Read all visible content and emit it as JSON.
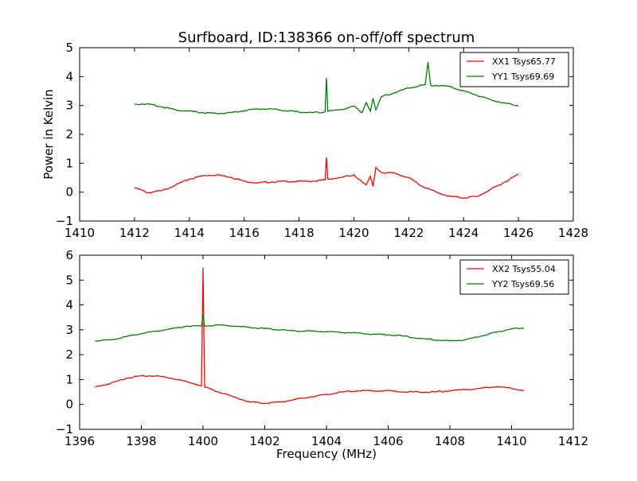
{
  "figure": {
    "title": "Surfboard, ID:138366 on-off/off spectrum",
    "ylabel": "Power in Kelvin",
    "xlabel": "Frequency (MHz)"
  },
  "chart_data": [
    {
      "type": "line",
      "title": "Surfboard, ID:138366 on-off/off spectrum",
      "xlabel": "",
      "ylabel": "Power in Kelvin",
      "xlim": [
        1410,
        1428
      ],
      "ylim": [
        -1,
        5
      ],
      "xticks": [
        1410,
        1412,
        1414,
        1416,
        1418,
        1420,
        1422,
        1424,
        1426,
        1428
      ],
      "yticks": [
        -1,
        0,
        1,
        2,
        3,
        4,
        5
      ],
      "legend": "top-right",
      "series": [
        {
          "name": "XX1 Tsys65.77",
          "color": "#ff0000",
          "points": [
            [
              1412.0,
              0.15
            ],
            [
              1412.5,
              -0.02
            ],
            [
              1413.0,
              0.05
            ],
            [
              1413.5,
              0.25
            ],
            [
              1414.0,
              0.45
            ],
            [
              1414.5,
              0.57
            ],
            [
              1415.0,
              0.6
            ],
            [
              1415.5,
              0.52
            ],
            [
              1416.0,
              0.38
            ],
            [
              1416.5,
              0.32
            ],
            [
              1417.0,
              0.35
            ],
            [
              1417.5,
              0.37
            ],
            [
              1418.0,
              0.37
            ],
            [
              1418.5,
              0.38
            ],
            [
              1418.95,
              0.42
            ],
            [
              1419.0,
              1.2
            ],
            [
              1419.05,
              0.45
            ],
            [
              1419.5,
              0.5
            ],
            [
              1420.0,
              0.6
            ],
            [
              1420.3,
              0.35
            ],
            [
              1420.45,
              0.25
            ],
            [
              1420.6,
              0.55
            ],
            [
              1420.7,
              0.2
            ],
            [
              1420.8,
              0.85
            ],
            [
              1421.0,
              0.68
            ],
            [
              1421.5,
              0.65
            ],
            [
              1422.0,
              0.5
            ],
            [
              1422.5,
              0.2
            ],
            [
              1423.0,
              0.0
            ],
            [
              1423.5,
              -0.15
            ],
            [
              1424.0,
              -0.2
            ],
            [
              1424.5,
              -0.15
            ],
            [
              1425.0,
              0.1
            ],
            [
              1425.5,
              0.35
            ],
            [
              1426.0,
              0.62
            ]
          ]
        },
        {
          "name": "YY1 Tsys69.69",
          "color": "#008000",
          "points": [
            [
              1412.0,
              3.05
            ],
            [
              1412.5,
              3.05
            ],
            [
              1413.0,
              2.95
            ],
            [
              1413.5,
              2.85
            ],
            [
              1414.0,
              2.8
            ],
            [
              1414.5,
              2.75
            ],
            [
              1415.0,
              2.72
            ],
            [
              1415.5,
              2.75
            ],
            [
              1416.0,
              2.82
            ],
            [
              1416.5,
              2.88
            ],
            [
              1417.0,
              2.88
            ],
            [
              1417.5,
              2.82
            ],
            [
              1418.0,
              2.77
            ],
            [
              1418.5,
              2.75
            ],
            [
              1418.95,
              2.78
            ],
            [
              1419.0,
              3.95
            ],
            [
              1419.05,
              2.8
            ],
            [
              1419.5,
              2.85
            ],
            [
              1420.0,
              2.98
            ],
            [
              1420.3,
              2.75
            ],
            [
              1420.45,
              3.1
            ],
            [
              1420.6,
              2.8
            ],
            [
              1420.7,
              3.25
            ],
            [
              1420.8,
              2.85
            ],
            [
              1421.0,
              3.3
            ],
            [
              1421.5,
              3.45
            ],
            [
              1422.0,
              3.6
            ],
            [
              1422.6,
              3.72
            ],
            [
              1422.7,
              4.5
            ],
            [
              1422.8,
              3.7
            ],
            [
              1423.0,
              3.7
            ],
            [
              1423.5,
              3.65
            ],
            [
              1424.0,
              3.5
            ],
            [
              1424.5,
              3.35
            ],
            [
              1425.0,
              3.2
            ],
            [
              1425.5,
              3.08
            ],
            [
              1426.0,
              3.0
            ]
          ]
        }
      ]
    },
    {
      "type": "line",
      "title": "",
      "xlabel": "Frequency (MHz)",
      "ylabel": "",
      "xlim": [
        1396,
        1412
      ],
      "ylim": [
        -1,
        6
      ],
      "xticks": [
        1396,
        1398,
        1400,
        1402,
        1404,
        1406,
        1408,
        1410,
        1412
      ],
      "yticks": [
        -1,
        0,
        1,
        2,
        3,
        4,
        5,
        6
      ],
      "legend": "top-right",
      "series": [
        {
          "name": "XX2 Tsys55.04",
          "color": "#ff0000",
          "points": [
            [
              1396.5,
              0.7
            ],
            [
              1397.0,
              0.85
            ],
            [
              1397.5,
              1.05
            ],
            [
              1398.0,
              1.15
            ],
            [
              1398.5,
              1.15
            ],
            [
              1399.0,
              1.05
            ],
            [
              1399.5,
              0.9
            ],
            [
              1399.95,
              0.75
            ],
            [
              1400.0,
              5.5
            ],
            [
              1400.05,
              0.7
            ],
            [
              1400.5,
              0.5
            ],
            [
              1401.0,
              0.3
            ],
            [
              1401.5,
              0.1
            ],
            [
              1402.0,
              0.05
            ],
            [
              1402.5,
              0.1
            ],
            [
              1403.0,
              0.2
            ],
            [
              1403.5,
              0.3
            ],
            [
              1404.0,
              0.4
            ],
            [
              1404.5,
              0.5
            ],
            [
              1405.0,
              0.55
            ],
            [
              1405.5,
              0.55
            ],
            [
              1406.0,
              0.55
            ],
            [
              1406.5,
              0.5
            ],
            [
              1407.0,
              0.5
            ],
            [
              1407.5,
              0.5
            ],
            [
              1408.0,
              0.55
            ],
            [
              1408.5,
              0.6
            ],
            [
              1409.0,
              0.65
            ],
            [
              1409.5,
              0.72
            ],
            [
              1410.0,
              0.65
            ],
            [
              1410.4,
              0.55
            ]
          ]
        },
        {
          "name": "YY2 Tsys69.56",
          "color": "#008000",
          "points": [
            [
              1396.5,
              2.55
            ],
            [
              1397.0,
              2.6
            ],
            [
              1397.5,
              2.72
            ],
            [
              1398.0,
              2.85
            ],
            [
              1398.5,
              2.95
            ],
            [
              1399.0,
              3.05
            ],
            [
              1399.5,
              3.15
            ],
            [
              1399.95,
              3.15
            ],
            [
              1400.0,
              3.6
            ],
            [
              1400.05,
              3.15
            ],
            [
              1400.5,
              3.2
            ],
            [
              1401.0,
              3.15
            ],
            [
              1401.5,
              3.1
            ],
            [
              1402.0,
              3.05
            ],
            [
              1402.5,
              3.0
            ],
            [
              1403.0,
              2.95
            ],
            [
              1403.5,
              2.95
            ],
            [
              1404.0,
              2.93
            ],
            [
              1404.5,
              2.9
            ],
            [
              1405.0,
              2.87
            ],
            [
              1405.5,
              2.82
            ],
            [
              1406.0,
              2.8
            ],
            [
              1406.5,
              2.75
            ],
            [
              1407.0,
              2.65
            ],
            [
              1407.5,
              2.6
            ],
            [
              1408.0,
              2.55
            ],
            [
              1408.5,
              2.6
            ],
            [
              1409.0,
              2.75
            ],
            [
              1409.5,
              2.9
            ],
            [
              1410.0,
              3.05
            ],
            [
              1410.4,
              3.05
            ]
          ]
        }
      ]
    }
  ]
}
